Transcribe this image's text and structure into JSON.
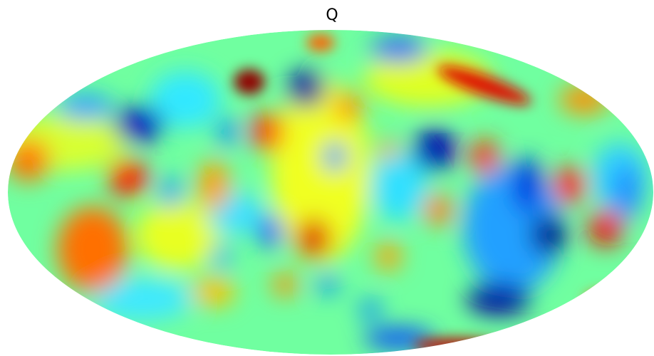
{
  "title": "Q"
}
